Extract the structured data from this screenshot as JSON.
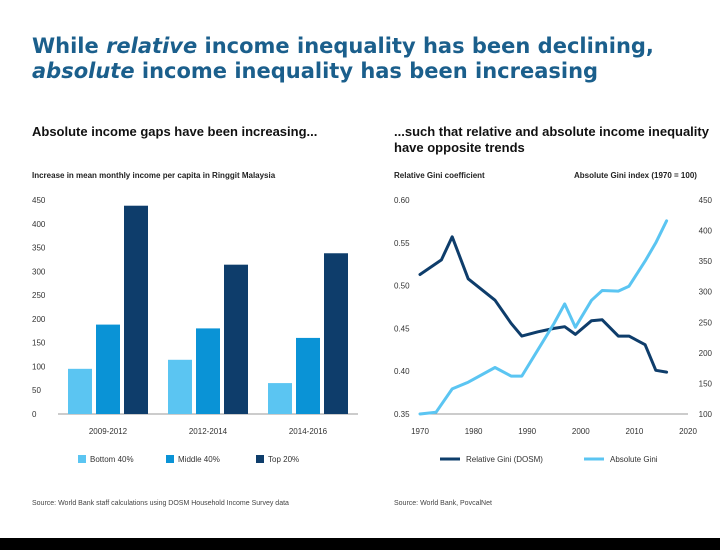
{
  "title": {
    "part1": "While ",
    "part2": "relative",
    "part3": " income inequality has been declining, ",
    "part4": "absolute",
    "part5": " income inequality has been increasing"
  },
  "colors": {
    "title": "#1b5f8c",
    "bottom40": "#5bc5f2",
    "middle40": "#0a93d6",
    "top20": "#0e3d6b",
    "relative_gini": "#0e3d6b",
    "absolute_gini": "#5bc5f2"
  },
  "left_panel": {
    "subtitle": "Absolute income gaps have been increasing...",
    "y_axis_title": "Increase in mean monthly income per capita in Ringgit Malaysia",
    "source": "Source: World Bank staff calculations using DOSM Household Income Survey data"
  },
  "right_panel": {
    "subtitle": "...such that relative and absolute income inequality have opposite trends",
    "left_axis_title": "Relative Gini coefficient",
    "right_axis_title": "Absolute Gini index (1970 = 100)",
    "source": "Source: World Bank, PovcalNet"
  },
  "chart_data": [
    {
      "type": "bar",
      "title": "Absolute income gaps have been increasing...",
      "ylabel": "Increase in mean monthly income per capita in Ringgit Malaysia",
      "categories": [
        "2009-2012",
        "2012-2014",
        "2014-2016"
      ],
      "series": [
        {
          "name": "Bottom 40%",
          "values": [
            95,
            114,
            65
          ]
        },
        {
          "name": "Middle 40%",
          "values": [
            188,
            180,
            160
          ]
        },
        {
          "name": "Top 20%",
          "values": [
            438,
            314,
            338
          ]
        }
      ],
      "ylim": [
        0,
        450
      ],
      "yticks": [
        0,
        50,
        100,
        150,
        200,
        250,
        300,
        350,
        400,
        450
      ],
      "legend_position": "bottom"
    },
    {
      "type": "line",
      "title": "...such that relative and absolute income inequality have opposite trends",
      "xlim": [
        1970,
        2020
      ],
      "xticks": [
        1970,
        1980,
        1990,
        2000,
        2010,
        2020
      ],
      "ylabel_left": "Relative Gini coefficient",
      "ylim_left": [
        0.35,
        0.6
      ],
      "yticks_left": [
        "0.35",
        "0.40",
        "0.45",
        "0.50",
        "0.55",
        "0.60"
      ],
      "ylabel_right": "Absolute Gini index (1970 = 100)",
      "ylim_right": [
        100,
        450
      ],
      "yticks_right": [
        100,
        150,
        200,
        250,
        300,
        350,
        400,
        450
      ],
      "legend_position": "bottom",
      "series": [
        {
          "name": "Relative Gini (DOSM)",
          "axis": "left",
          "x": [
            1970,
            1974,
            1976,
            1979,
            1984,
            1987,
            1989,
            1992,
            1995,
            1997,
            1999,
            2002,
            2004,
            2007,
            2009,
            2012,
            2014,
            2016
          ],
          "y": [
            0.513,
            0.53,
            0.557,
            0.508,
            0.483,
            0.456,
            0.441,
            0.446,
            0.45,
            0.452,
            0.443,
            0.459,
            0.46,
            0.441,
            0.441,
            0.431,
            0.401,
            0.399
          ]
        },
        {
          "name": "Absolute Gini",
          "axis": "right",
          "x": [
            1970,
            1973,
            1976,
            1979,
            1984,
            1987,
            1989,
            1992,
            1995,
            1997,
            1999,
            2002,
            2004,
            2007,
            2009,
            2012,
            2014,
            2016
          ],
          "y": [
            100,
            103,
            141,
            152,
            176,
            162,
            162,
            205,
            248,
            280,
            242,
            286,
            302,
            301,
            309,
            350,
            380,
            416
          ]
        }
      ]
    }
  ]
}
